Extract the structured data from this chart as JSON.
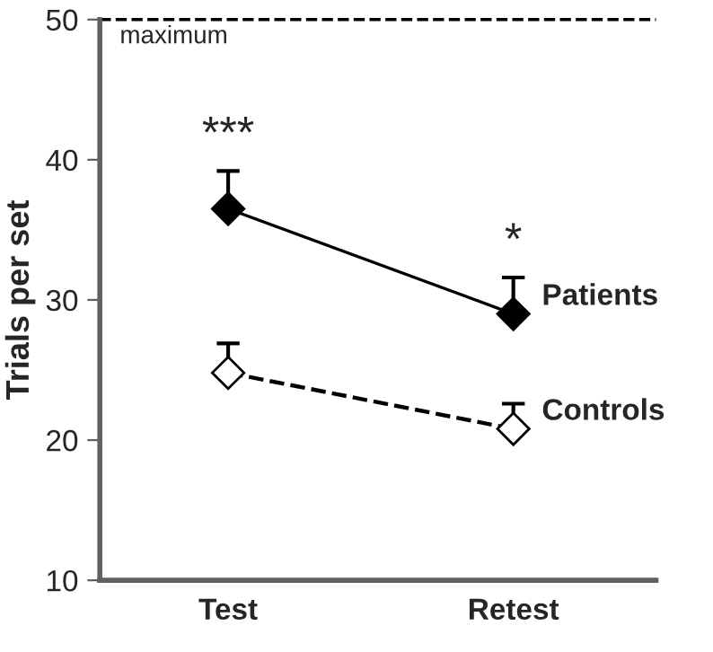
{
  "chart_data": {
    "type": "line",
    "ylabel": "Trials per set",
    "categories": [
      "Test",
      "Retest"
    ],
    "series": [
      {
        "name": "Patients",
        "color": "#000000",
        "values": [
          36.5,
          29.0
        ],
        "errors": [
          [
            36.5,
            39.2
          ],
          [
            29.0,
            31.6
          ]
        ],
        "marker": "diamond",
        "line_style": "solid"
      },
      {
        "name": "Controls",
        "color": "#000000",
        "values": [
          24.8,
          20.8
        ],
        "errors": [
          [
            24.8,
            26.9
          ],
          [
            20.8,
            22.6
          ]
        ],
        "marker": "diamond",
        "line_style": "dashed"
      }
    ],
    "ylim": [
      10,
      50
    ],
    "yticks": [
      10,
      20,
      30,
      40,
      50
    ],
    "grid": false,
    "legend": false,
    "ref_lines": [
      {
        "axis": "y",
        "value": 50,
        "label": "maximum",
        "line_style": "dashed",
        "color": "#000000"
      }
    ],
    "annotations": [
      "***",
      "*"
    ]
  }
}
